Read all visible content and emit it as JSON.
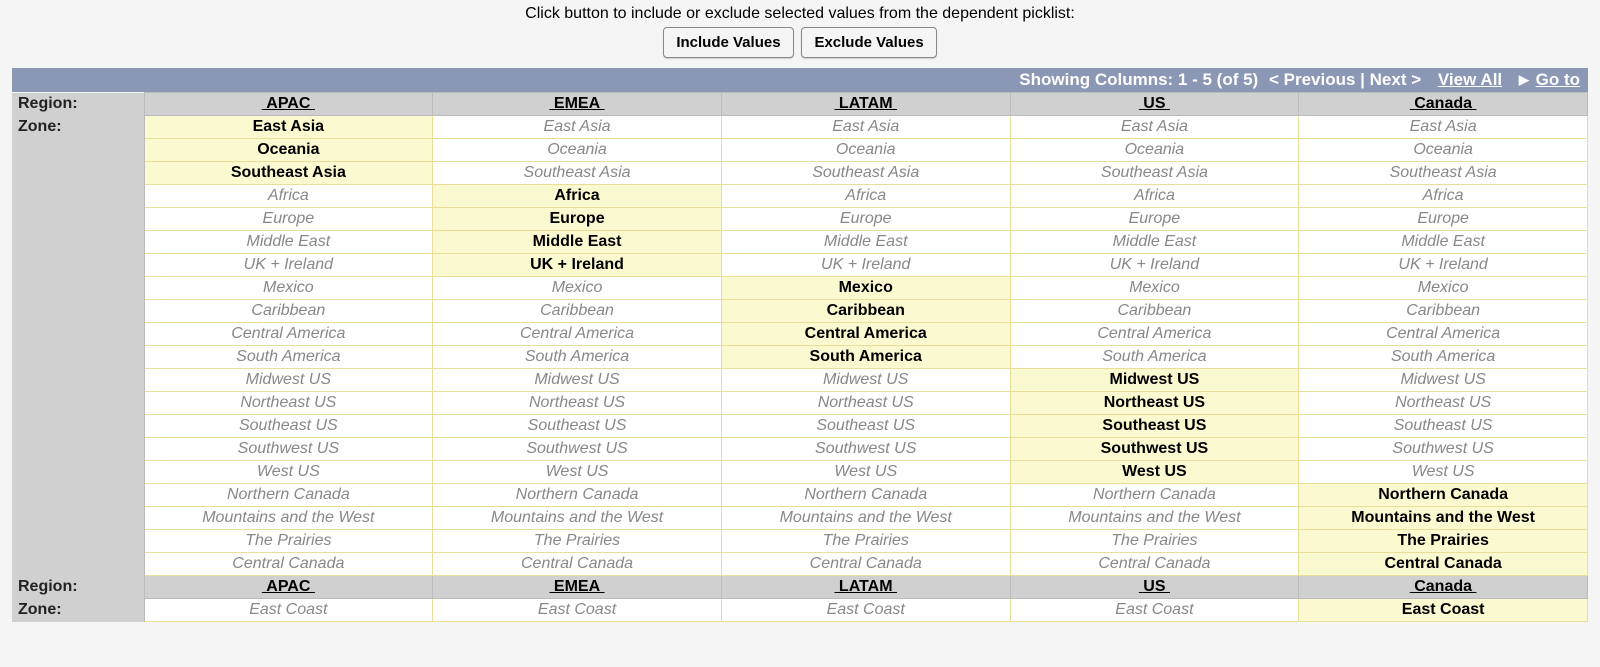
{
  "instruction": "Click button to include or exclude selected values from the dependent picklist:",
  "buttons": {
    "include": "Include Values",
    "exclude": "Exclude Values"
  },
  "pager": {
    "showing": "Showing Columns: 1 - 5 (of 5)",
    "previous": "< Previous",
    "next": "Next >",
    "view_all": "View All",
    "go_to": "Go to"
  },
  "labels": {
    "region": "Region:",
    "zone": "Zone:"
  },
  "columns": [
    "APAC",
    "EMEA",
    "LATAM",
    "US",
    "Canada"
  ],
  "zones": [
    "East Asia",
    "Oceania",
    "Southeast Asia",
    "Africa",
    "Europe",
    "Middle East",
    "UK + Ireland",
    "Mexico",
    "Caribbean",
    "Central America",
    "South America",
    "Midwest US",
    "Northeast US",
    "Southeast US",
    "Southwest US",
    "West US",
    "Northern Canada",
    "Mountains and the West",
    "The Prairies",
    "Central Canada"
  ],
  "included": {
    "APAC": [
      "East Asia",
      "Oceania",
      "Southeast Asia"
    ],
    "EMEA": [
      "Africa",
      "Europe",
      "Middle East",
      "UK + Ireland"
    ],
    "LATAM": [
      "Mexico",
      "Caribbean",
      "Central America",
      "South America"
    ],
    "US": [
      "Midwest US",
      "Northeast US",
      "Southeast US",
      "Southwest US",
      "West US"
    ],
    "Canada": [
      "Northern Canada",
      "Mountains and the West",
      "The Prairies",
      "Central Canada"
    ]
  },
  "second_zone_row": {
    "value": "East Coast",
    "included_column": "Canada"
  }
}
